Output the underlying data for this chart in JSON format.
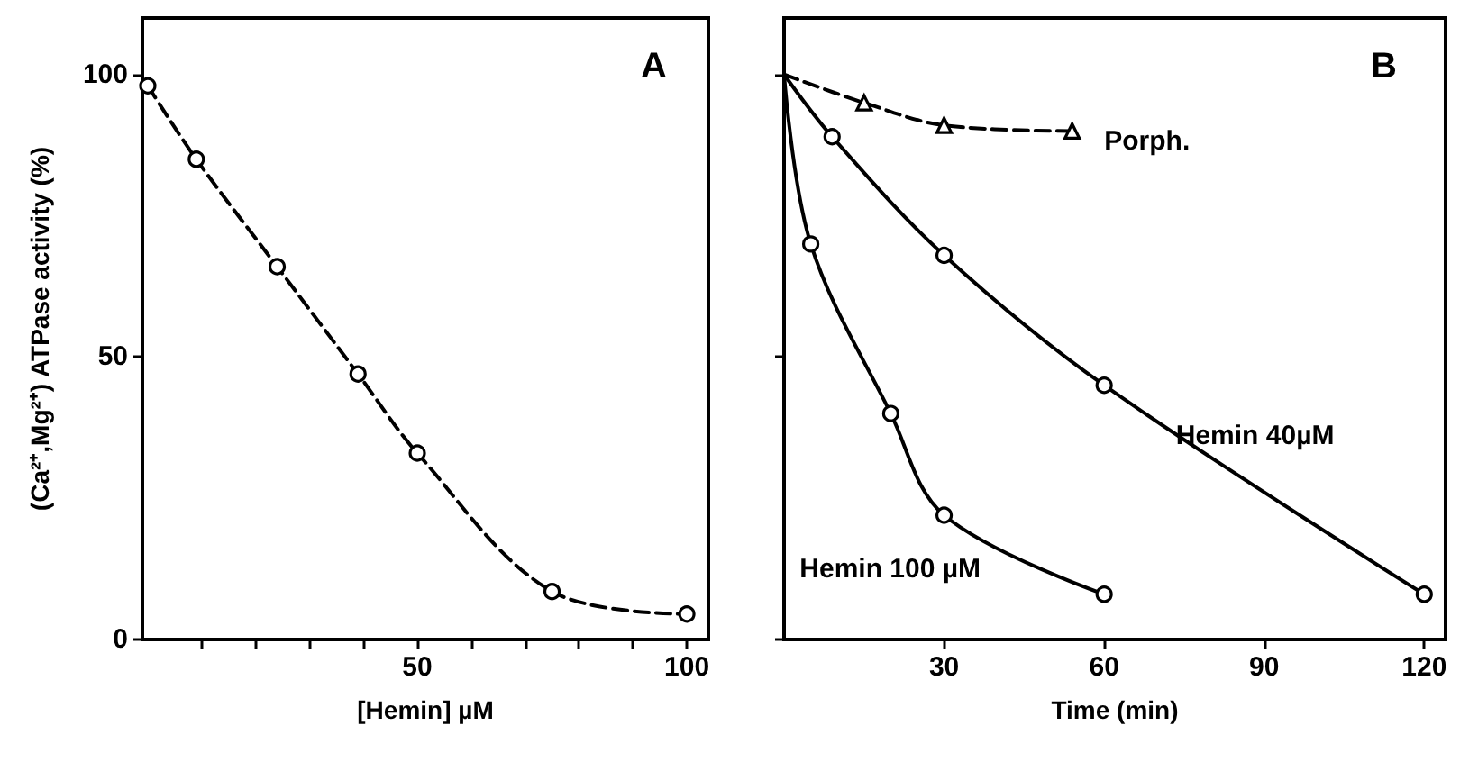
{
  "chart_data": [
    {
      "type": "line",
      "title": "A",
      "xlabel": "[Hemin] µM",
      "ylabel": "(Ca²⁺,Mg²⁺) ATPase activity (%)",
      "xlim": [
        -1,
        104
      ],
      "xticks": [
        {
          "value": 10,
          "label": null
        },
        {
          "value": 20,
          "label": null
        },
        {
          "value": 30,
          "label": null
        },
        {
          "value": 40,
          "label": null
        },
        50,
        {
          "value": 60,
          "label": null
        },
        {
          "value": 70,
          "label": null
        },
        {
          "value": 80,
          "label": null
        },
        {
          "value": 90,
          "label": null
        },
        100
      ],
      "ylim": [
        0,
        110
      ],
      "yticks": [
        0,
        50,
        100
      ],
      "grid": false,
      "legend": false,
      "series": [
        {
          "color": "#000000",
          "marker": "circle",
          "line_style": "dashed",
          "x": [
            0,
            9,
            24,
            39,
            50,
            75,
            100
          ],
          "values": [
            98,
            85,
            66,
            47,
            33,
            8.5,
            4.5
          ]
        }
      ]
    },
    {
      "type": "line",
      "title": "B",
      "xlabel": "Time (min)",
      "xlim": [
        0,
        124
      ],
      "xticks": [
        30,
        60,
        90,
        120
      ],
      "ylim": [
        0,
        110
      ],
      "yticks": [
        0,
        50,
        100
      ],
      "tick_labels": "x",
      "grid": false,
      "legend": false,
      "series": [
        {
          "name": "Porph.",
          "color": "#000000",
          "marker": "triangle",
          "line_style": "dashed",
          "x": [
            0,
            15,
            30,
            54
          ],
          "values": [
            100,
            95,
            91,
            90
          ]
        },
        {
          "name": "Hemin 40µM",
          "color": "#000000",
          "marker": "circle",
          "line_style": "solid",
          "x": [
            0,
            9,
            30,
            60,
            120
          ],
          "values": [
            100,
            89,
            68,
            45,
            8
          ]
        },
        {
          "name": "Hemin 100 µM",
          "color": "#000000",
          "marker": "circle",
          "line_style": "solid",
          "x": [
            0,
            5,
            20,
            30,
            60
          ],
          "values": [
            100,
            70,
            40,
            22,
            8
          ]
        }
      ]
    }
  ]
}
